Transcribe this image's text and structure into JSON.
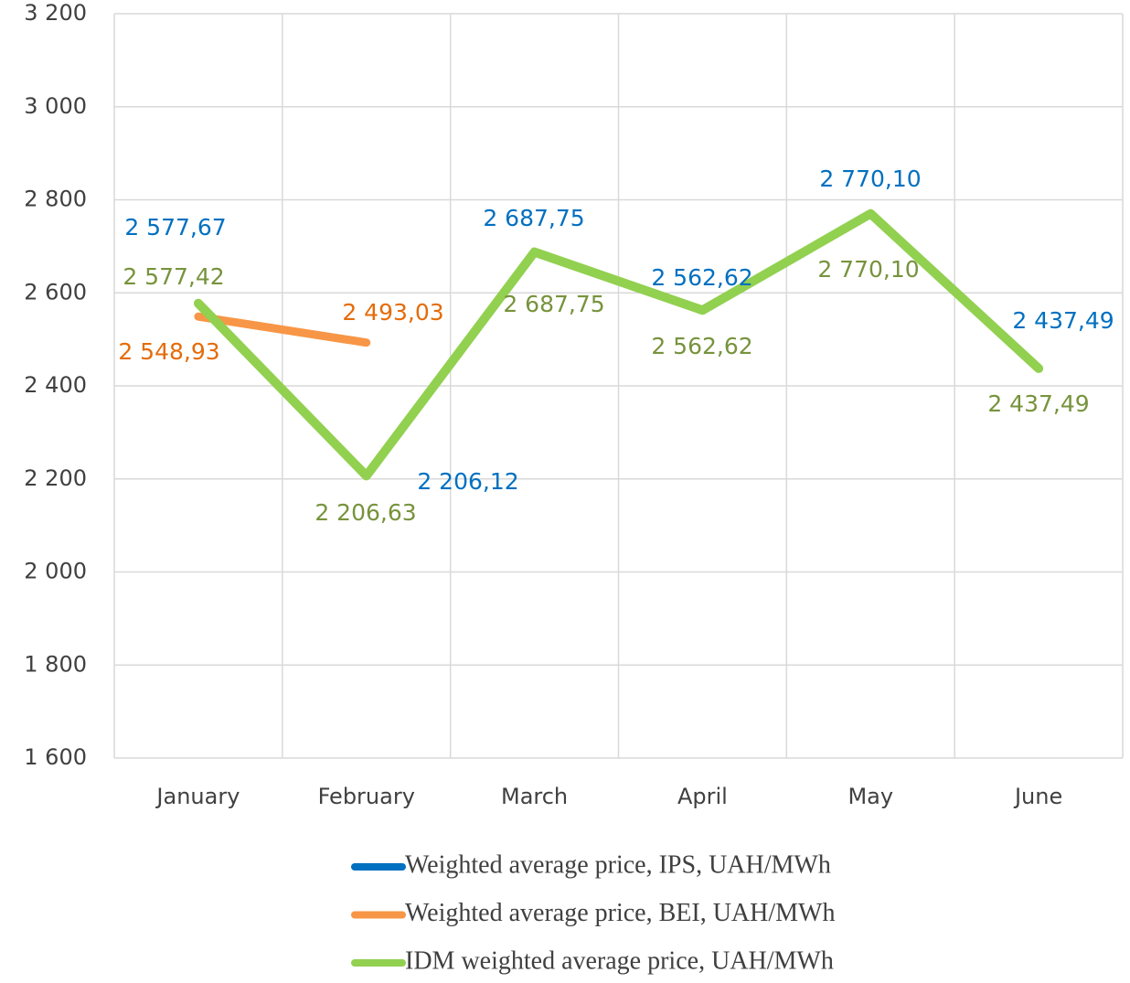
{
  "chart_data": {
    "type": "line",
    "categories": [
      "January",
      "February",
      "March",
      "April",
      "May",
      "June"
    ],
    "series": [
      {
        "name": "Weighted average price, IPS, UAH/MWh",
        "color": "#0070c0",
        "values": [
          2577.67,
          2206.12,
          2687.75,
          2562.62,
          2770.1,
          2437.49
        ],
        "value_labels": [
          "2 577,67",
          "2 206,12",
          "2 687,75",
          "2 562,62",
          "2 770,10",
          "2 437,49"
        ]
      },
      {
        "name": "Weighted average price, BEI, UAH/MWh",
        "color": "#f79646",
        "values": [
          2548.93,
          2493.03,
          null,
          null,
          null,
          null
        ],
        "value_labels": [
          "2 548,93",
          "2 493,03",
          null,
          null,
          null,
          null
        ]
      },
      {
        "name": "IDM weighted average price, UAH/MWh",
        "color": "#92d050",
        "values": [
          2577.42,
          2206.63,
          2687.75,
          2562.62,
          2770.1,
          2437.49
        ],
        "value_labels": [
          "2 577,42",
          "2 206,63",
          "2 687,75",
          "2 562,62",
          "2 770,10",
          "2 437,49"
        ]
      }
    ],
    "ylim": [
      1600,
      3200
    ],
    "yticks": [
      {
        "value": 1600,
        "label": "1 600"
      },
      {
        "value": 1800,
        "label": "1 800"
      },
      {
        "value": 2000,
        "label": "2 000"
      },
      {
        "value": 2200,
        "label": "2 200"
      },
      {
        "value": 2400,
        "label": "2 400"
      },
      {
        "value": 2600,
        "label": "2 600"
      },
      {
        "value": 2800,
        "label": "2 800"
      },
      {
        "value": 3000,
        "label": "3 000"
      },
      {
        "value": 3200,
        "label": "3 200"
      }
    ],
    "grid": true,
    "legend": "bottom"
  }
}
